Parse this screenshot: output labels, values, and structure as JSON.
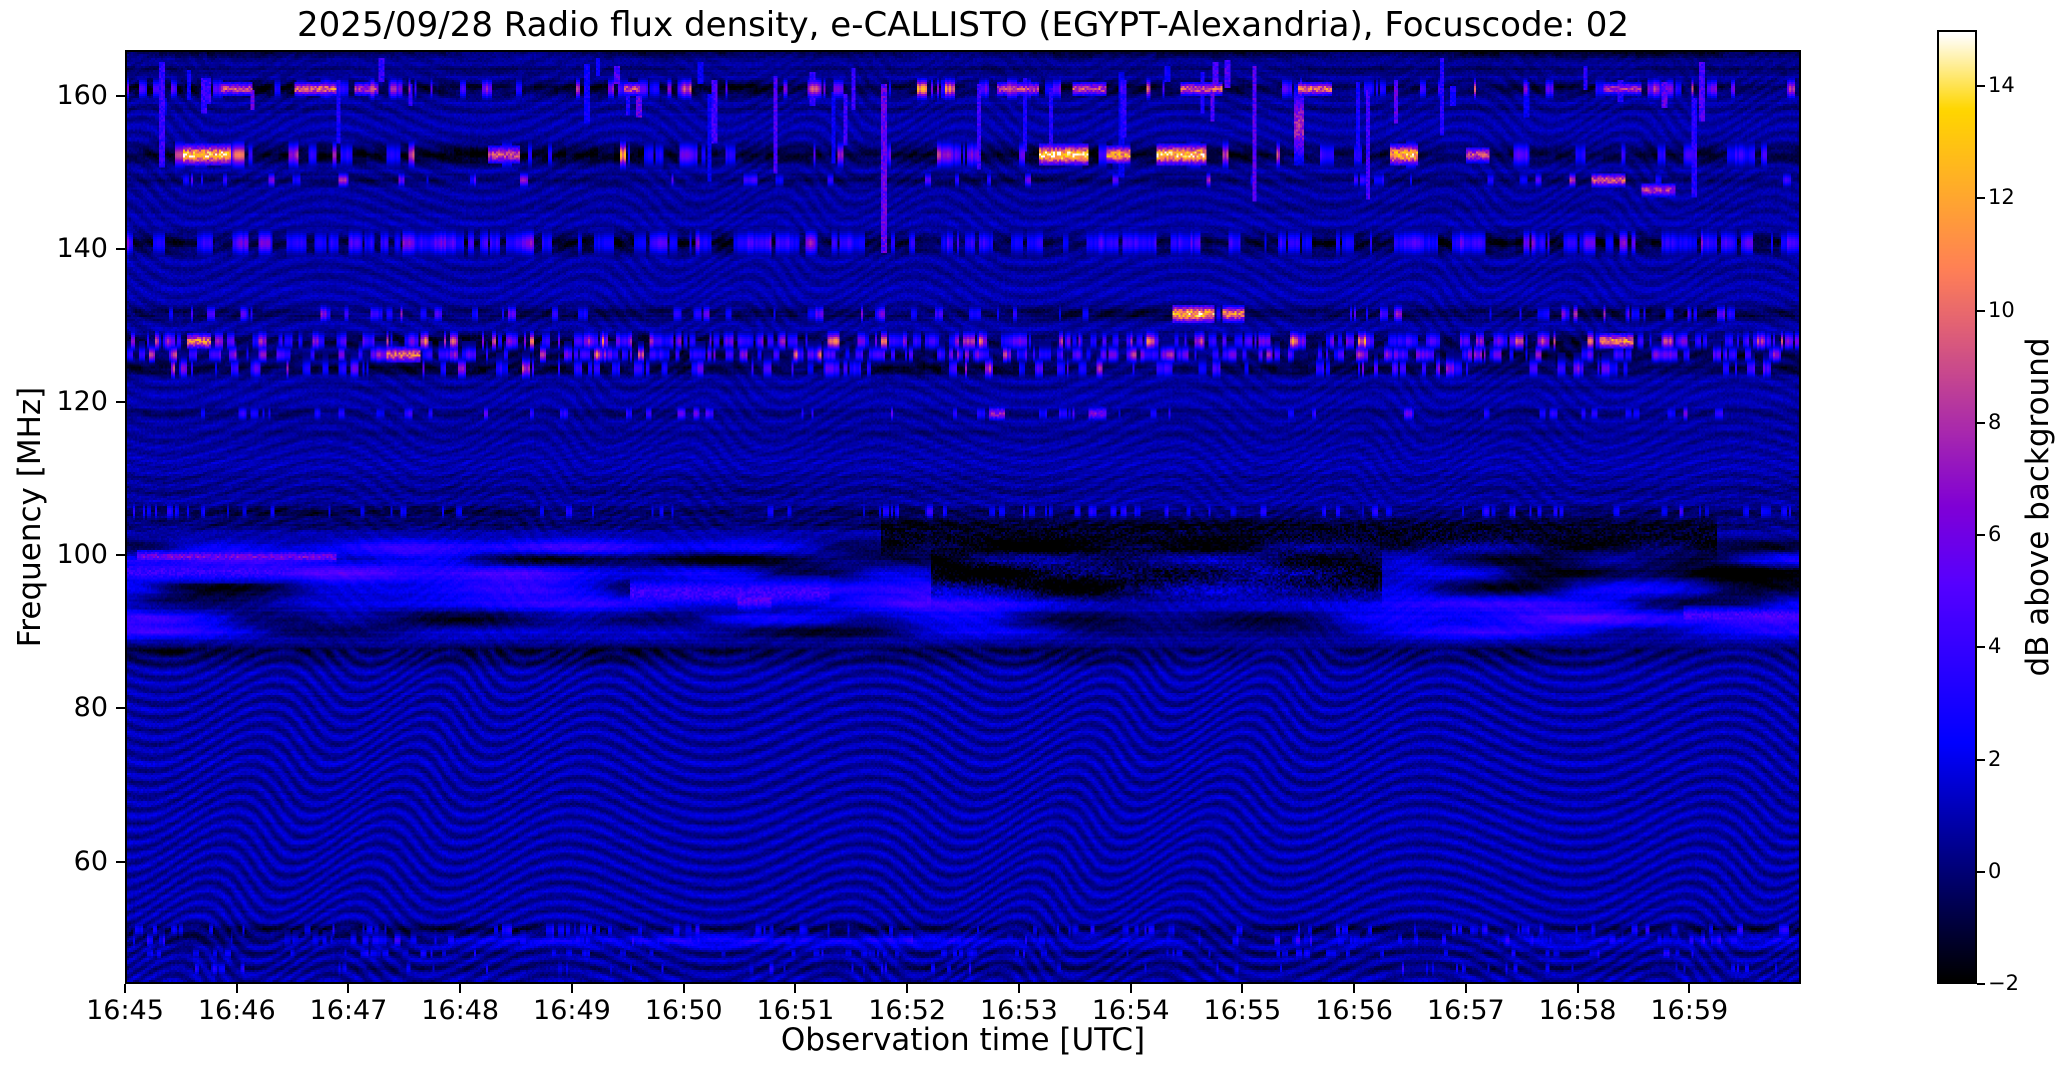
{
  "figure": {
    "background": "#ffffff",
    "text_color": "#000000"
  },
  "chart_data": {
    "type": "heatmap",
    "title": "2025/09/28  Radio flux density, e-CALLISTO (EGYPT-Alexandria), Focuscode: 02",
    "xlabel": "Observation time [UTC]",
    "ylabel": "Frequency [MHz]",
    "x_ticks": [
      "16:45",
      "16:46",
      "16:47",
      "16:48",
      "16:49",
      "16:50",
      "16:51",
      "16:52",
      "16:53",
      "16:54",
      "16:55",
      "16:56",
      "16:57",
      "16:58",
      "16:59"
    ],
    "x_range": [
      "16:45",
      "17:00"
    ],
    "x_range_minutes": 15,
    "y_ticks": [
      160,
      140,
      120,
      100,
      80,
      60
    ],
    "y_range": [
      44,
      166
    ],
    "grid": false,
    "colorbar": {
      "label": "dB above background",
      "range": [
        -2,
        15
      ],
      "colormap": "gnuplot2",
      "ticks": [
        {
          "v": 14,
          "label": "14"
        },
        {
          "v": 12,
          "label": "12"
        },
        {
          "v": 10,
          "label": "10"
        },
        {
          "v": 8,
          "label": "8"
        },
        {
          "v": 6,
          "label": "6"
        },
        {
          "v": 4,
          "label": "4"
        },
        {
          "v": 2,
          "label": "2"
        },
        {
          "v": 0,
          "label": "0"
        },
        {
          "v": -2,
          "label": "−2"
        }
      ]
    },
    "description": "Dynamic radio spectrum (spectrogram): blue wavy interference ripples over a dark background, horizontal RFI lanes with bright speckles (strongest near 161, 152.6, 141, 124-128 MHz), FM broadcast smears between 88-102 MHz, quiet wavy band below 87 MHz.",
    "bands": [
      {
        "f": 166.0,
        "w": 0.6,
        "depth": 2.0
      },
      {
        "f": 163.8,
        "w": 0.5,
        "depth": 1.2
      },
      {
        "f": 161.3,
        "w": 0.7,
        "depth": 2.3,
        "speckle": {
          "density": 0.1,
          "min": 3,
          "max": 12,
          "len": 5
        }
      },
      {
        "f": 158.8,
        "w": 0.4,
        "depth": 0.7
      },
      {
        "f": 152.6,
        "w": 0.9,
        "depth": 2.5,
        "speckle": {
          "density": 0.07,
          "min": 3,
          "max": 13,
          "len": 7
        }
      },
      {
        "f": 149.3,
        "w": 0.5,
        "depth": 1.4,
        "speckle": {
          "density": 0.05,
          "min": 2.5,
          "max": 9,
          "len": 4
        }
      },
      {
        "f": 145.8,
        "w": 0.4,
        "depth": 0.6
      },
      {
        "f": 141.0,
        "w": 0.9,
        "depth": 2.6,
        "speckle": {
          "density": 0.22,
          "min": 2.5,
          "max": 7.5,
          "len": 6
        }
      },
      {
        "f": 137.5,
        "w": 0.4,
        "depth": 0.5
      },
      {
        "f": 131.7,
        "w": 0.6,
        "depth": 1.7,
        "speckle": {
          "density": 0.08,
          "min": 2.5,
          "max": 9,
          "len": 4
        }
      },
      {
        "f": 128.1,
        "w": 0.7,
        "depth": 2.2,
        "speckle": {
          "density": 0.28,
          "min": 3,
          "max": 12,
          "len": 4
        }
      },
      {
        "f": 126.3,
        "w": 0.6,
        "depth": 2.0,
        "speckle": {
          "density": 0.25,
          "min": 3,
          "max": 11,
          "len": 4
        }
      },
      {
        "f": 124.5,
        "w": 0.7,
        "depth": 2.2,
        "speckle": {
          "density": 0.12,
          "min": 2.5,
          "max": 9,
          "len": 4
        }
      },
      {
        "f": 121.8,
        "w": 0.4,
        "depth": 0.6
      },
      {
        "f": 118.6,
        "w": 0.5,
        "depth": 1.0,
        "speckle": {
          "density": 0.06,
          "min": 2.5,
          "max": 8,
          "len": 4
        }
      },
      {
        "f": 116.3,
        "w": 0.4,
        "depth": 0.6
      },
      {
        "f": 110.0,
        "w": 0.4,
        "depth": 0.5
      },
      {
        "f": 108.2,
        "w": 0.5,
        "depth": 0.9
      },
      {
        "f": 105.7,
        "w": 0.6,
        "depth": 1.6,
        "speckle": {
          "density": 0.1,
          "min": 2,
          "max": 4.5,
          "len": 3
        }
      },
      {
        "f": 104.1,
        "w": 0.5,
        "depth": 1.3
      },
      {
        "f": 101.0,
        "w": 0.7,
        "amp": 3.0,
        "dark": 1.8
      },
      {
        "f": 99.4,
        "w": 0.7,
        "amp": 3.5,
        "dark": 2.2
      },
      {
        "f": 97.6,
        "w": 0.8,
        "amp": 3.2,
        "dark": 2.4
      },
      {
        "f": 95.6,
        "w": 0.8,
        "amp": 2.8,
        "dark": 2.4
      },
      {
        "f": 93.6,
        "w": 0.8,
        "amp": 3.0,
        "dark": 2.2
      },
      {
        "f": 91.6,
        "w": 0.8,
        "amp": 3.4,
        "dark": 1.8
      },
      {
        "f": 89.9,
        "w": 0.6,
        "amp": 2.6,
        "dark": 1.4
      },
      {
        "f": 87.3,
        "w": 0.6,
        "depth": 1.9
      },
      {
        "f": 85.9,
        "w": 0.4,
        "depth": 1.0
      },
      {
        "f": 50.7,
        "w": 0.5,
        "depth": 1.7,
        "speckle": {
          "density": 0.1,
          "min": 2,
          "max": 4,
          "len": 3
        }
      },
      {
        "f": 49.3,
        "w": 0.5,
        "amp": 1.8,
        "dark": 0.8,
        "speckle": {
          "density": 0.12,
          "min": 2,
          "max": 4.5,
          "len": 3
        }
      },
      {
        "f": 47.6,
        "w": 0.4,
        "depth": 0.8,
        "speckle": {
          "density": 0.08,
          "min": 1.8,
          "max": 3.5,
          "len": 3
        }
      },
      {
        "f": 45.6,
        "w": 0.5,
        "depth": 0.9,
        "speckle": {
          "density": 0.06,
          "min": 2,
          "max": 4,
          "len": 2
        }
      }
    ],
    "hotspots": [
      {
        "f": 152.6,
        "t0": 0.033,
        "t1": 0.062,
        "amp": 13,
        "w": 0.8
      },
      {
        "f": 152.6,
        "t0": 0.215,
        "t1": 0.235,
        "amp": 9,
        "w": 0.7
      },
      {
        "f": 152.6,
        "t0": 0.545,
        "t1": 0.575,
        "amp": 13.5,
        "w": 0.8
      },
      {
        "f": 152.6,
        "t0": 0.585,
        "t1": 0.6,
        "amp": 12,
        "w": 0.7
      },
      {
        "f": 152.6,
        "t0": 0.615,
        "t1": 0.645,
        "amp": 13,
        "w": 0.8
      },
      {
        "f": 152.6,
        "t0": 0.755,
        "t1": 0.772,
        "amp": 12.5,
        "w": 0.8
      },
      {
        "f": 152.6,
        "t0": 0.8,
        "t1": 0.815,
        "amp": 9,
        "w": 0.6
      },
      {
        "f": 161.3,
        "t0": 0.055,
        "t1": 0.075,
        "amp": 9,
        "w": 0.5
      },
      {
        "f": 161.3,
        "t0": 0.1,
        "t1": 0.125,
        "amp": 10,
        "w": 0.5
      },
      {
        "f": 161.3,
        "t0": 0.135,
        "t1": 0.15,
        "amp": 8,
        "w": 0.5
      },
      {
        "f": 161.3,
        "t0": 0.296,
        "t1": 0.306,
        "amp": 9,
        "w": 0.5
      },
      {
        "f": 161.3,
        "t0": 0.52,
        "t1": 0.545,
        "amp": 8.5,
        "w": 0.5
      },
      {
        "f": 161.3,
        "t0": 0.565,
        "t1": 0.585,
        "amp": 9,
        "w": 0.5
      },
      {
        "f": 161.3,
        "t0": 0.63,
        "t1": 0.655,
        "amp": 9.5,
        "w": 0.5
      },
      {
        "f": 161.3,
        "t0": 0.7,
        "t1": 0.72,
        "amp": 10,
        "w": 0.5
      },
      {
        "f": 161.3,
        "t0": 0.882,
        "t1": 0.905,
        "amp": 8,
        "w": 0.45
      },
      {
        "f": 131.7,
        "t0": 0.625,
        "t1": 0.65,
        "amp": 12.5,
        "w": 0.7
      },
      {
        "f": 131.7,
        "t0": 0.655,
        "t1": 0.668,
        "amp": 11,
        "w": 0.6
      },
      {
        "f": 128.1,
        "t0": 0.035,
        "t1": 0.05,
        "amp": 11,
        "w": 0.6
      },
      {
        "f": 126.3,
        "t0": 0.155,
        "t1": 0.175,
        "amp": 10,
        "w": 0.6
      },
      {
        "f": 128.1,
        "t0": 0.88,
        "t1": 0.9,
        "amp": 11,
        "w": 0.6
      },
      {
        "f": 149.3,
        "t0": 0.875,
        "t1": 0.895,
        "amp": 9.5,
        "w": 0.5
      },
      {
        "f": 148.0,
        "t0": 0.905,
        "t1": 0.925,
        "amp": 8,
        "w": 0.5
      },
      {
        "f": 118.6,
        "t0": 0.515,
        "t1": 0.525,
        "amp": 7,
        "w": 0.5
      },
      {
        "f": 118.6,
        "t0": 0.575,
        "t1": 0.585,
        "amp": 6,
        "w": 0.5
      },
      {
        "f": 156.5,
        "t0": 0.698,
        "t1": 0.703,
        "amp": 7.5,
        "w": 3.0
      },
      {
        "f": 99.8,
        "t0": 0.005,
        "t1": 0.125,
        "amp": 6,
        "w": 0.5
      },
      {
        "f": 97.8,
        "t0": 0.0,
        "t1": 0.16,
        "amp": 4,
        "w": 0.9
      },
      {
        "f": 95.0,
        "t0": 0.3,
        "t1": 0.42,
        "amp": 4.2,
        "w": 1.2
      },
      {
        "f": 94.0,
        "t0": 0.365,
        "t1": 0.385,
        "amp": 5.2,
        "w": 0.8
      },
      {
        "f": 92.0,
        "t0": 0.93,
        "t1": 1.0,
        "amp": 4.5,
        "w": 0.7
      },
      {
        "f": 97.0,
        "t0": 0.48,
        "t1": 0.75,
        "amp": -3,
        "w": 2.2
      },
      {
        "f": 102.5,
        "t0": 0.45,
        "t1": 0.95,
        "amp": -2.2,
        "w": 1.5
      }
    ],
    "render": {
      "seed": 928,
      "ow": 838,
      "oh": 467,
      "streaks": 46
    }
  }
}
